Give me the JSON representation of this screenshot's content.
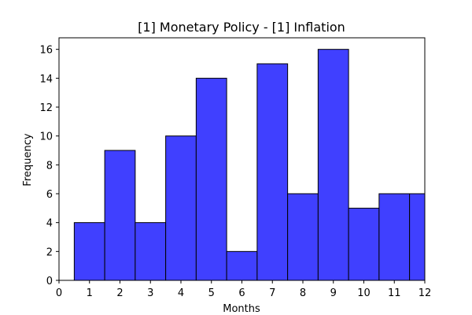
{
  "chart_data": {
    "type": "bar",
    "title": "[1] Monetary Policy - [1] Inflation",
    "xlabel": "Months",
    "ylabel": "Frequency",
    "categories": [
      "1",
      "2",
      "3",
      "4",
      "5",
      "6",
      "7",
      "8",
      "9",
      "10",
      "11",
      "12"
    ],
    "values": [
      4,
      9,
      4,
      10,
      14,
      2,
      15,
      6,
      16,
      5,
      6,
      6
    ],
    "bar_color": "#4040ff",
    "edge_color": "#000000",
    "xlim": [
      0,
      12
    ],
    "ylim": [
      0,
      16.8
    ],
    "xticks": [
      "0",
      "1",
      "2",
      "3",
      "4",
      "5",
      "6",
      "7",
      "8",
      "9",
      "10",
      "11",
      "12"
    ],
    "yticks": [
      "0",
      "2",
      "4",
      "6",
      "8",
      "10",
      "12",
      "14",
      "16"
    ],
    "grid": false
  }
}
